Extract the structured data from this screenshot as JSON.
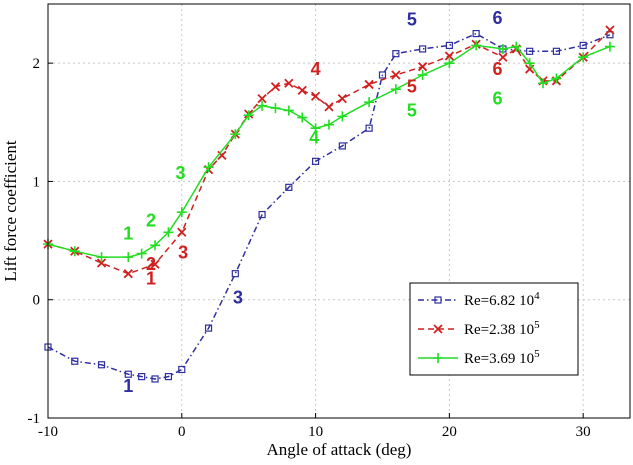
{
  "chart_data": {
    "type": "line",
    "title": "",
    "xlabel": "Angle of attack (deg)",
    "ylabel": "Lift force coefficient",
    "xlim": [
      -10,
      33.5
    ],
    "ylim": [
      -1,
      2.5
    ],
    "xticks": [
      -10,
      0,
      10,
      20,
      30
    ],
    "yticks": [
      -1,
      0,
      1,
      2
    ],
    "xtick_labels": [
      "-10",
      "0",
      "10",
      "20",
      "30"
    ],
    "ytick_labels": [
      "-1",
      "0",
      "1",
      "2"
    ],
    "grid": true,
    "legend_position": "lower-right",
    "series": [
      {
        "name": "Re=6.82 10",
        "name_sup": "4",
        "color": "#2e2ea0",
        "line_style": "dash-dot",
        "marker": "square",
        "x": [
          -10,
          -8,
          -6,
          -4,
          -3,
          -2,
          -1,
          0,
          2,
          4,
          6,
          8,
          10,
          12,
          14,
          15,
          16,
          18,
          20,
          22,
          24,
          26,
          28,
          30,
          32
        ],
        "y": [
          -0.4,
          -0.52,
          -0.55,
          -0.63,
          -0.65,
          -0.67,
          -0.65,
          -0.59,
          -0.24,
          0.22,
          0.72,
          0.95,
          1.17,
          1.3,
          1.45,
          1.9,
          2.08,
          2.12,
          2.15,
          2.25,
          2.12,
          2.1,
          2.1,
          2.15,
          2.24
        ]
      },
      {
        "name": "Re=2.38 10",
        "name_sup": "5",
        "color": "#d02020",
        "line_style": "dashed",
        "marker": "x",
        "x": [
          -10,
          -8,
          -6,
          -4,
          -2,
          0,
          2,
          3,
          4,
          5,
          6,
          7,
          8,
          9,
          10,
          11,
          12,
          14,
          16,
          18,
          20,
          22,
          24,
          25,
          26,
          27,
          28,
          30,
          32
        ],
        "y": [
          0.47,
          0.41,
          0.31,
          0.22,
          0.3,
          0.57,
          1.1,
          1.22,
          1.4,
          1.57,
          1.7,
          1.8,
          1.83,
          1.77,
          1.72,
          1.63,
          1.7,
          1.82,
          1.9,
          1.97,
          2.06,
          2.16,
          2.05,
          2.12,
          1.95,
          1.85,
          1.85,
          2.05,
          2.28
        ]
      },
      {
        "name": "Re=3.69 10",
        "name_sup": "5",
        "color": "#22dd22",
        "line_style": "solid",
        "marker": "plus",
        "x": [
          -10,
          -8,
          -6,
          -4,
          -3,
          -2,
          -1,
          0,
          2,
          4,
          5,
          6,
          7,
          8,
          9,
          10,
          11,
          12,
          14,
          16,
          18,
          20,
          22,
          24,
          25,
          26,
          27,
          28,
          30,
          32
        ],
        "y": [
          0.47,
          0.41,
          0.36,
          0.36,
          0.39,
          0.46,
          0.57,
          0.74,
          1.12,
          1.4,
          1.56,
          1.64,
          1.62,
          1.6,
          1.54,
          1.45,
          1.48,
          1.55,
          1.67,
          1.78,
          1.9,
          2.0,
          2.15,
          2.12,
          2.14,
          2.0,
          1.83,
          1.87,
          2.05,
          2.14
        ]
      }
    ],
    "annotations": [
      {
        "text": "1",
        "series": 0,
        "x": -4,
        "y": -0.78
      },
      {
        "text": "3",
        "series": 0,
        "x": 4.2,
        "y": -0.03
      },
      {
        "text": "5",
        "series": 0,
        "x": 17.2,
        "y": 2.32
      },
      {
        "text": "6",
        "series": 0,
        "x": 23.6,
        "y": 2.33
      },
      {
        "text": "1",
        "series": 1,
        "x": -2.3,
        "y": 0.13
      },
      {
        "text": "2",
        "series": 1,
        "x": -2.3,
        "y": 0.25
      },
      {
        "text": "3",
        "series": 1,
        "x": 0.1,
        "y": 0.35
      },
      {
        "text": "4",
        "series": 1,
        "x": 10,
        "y": 1.9
      },
      {
        "text": "5",
        "series": 1,
        "x": 17.2,
        "y": 1.75
      },
      {
        "text": "6",
        "series": 1,
        "x": 23.6,
        "y": 1.9
      },
      {
        "text": "1",
        "series": 2,
        "x": -4,
        "y": 0.51
      },
      {
        "text": "2",
        "series": 2,
        "x": -2.3,
        "y": 0.62
      },
      {
        "text": "3",
        "series": 2,
        "x": -0.1,
        "y": 1.02
      },
      {
        "text": "4",
        "series": 2,
        "x": 9.9,
        "y": 1.32
      },
      {
        "text": "5",
        "series": 2,
        "x": 17.2,
        "y": 1.55
      },
      {
        "text": "6",
        "series": 2,
        "x": 23.6,
        "y": 1.65
      }
    ]
  }
}
